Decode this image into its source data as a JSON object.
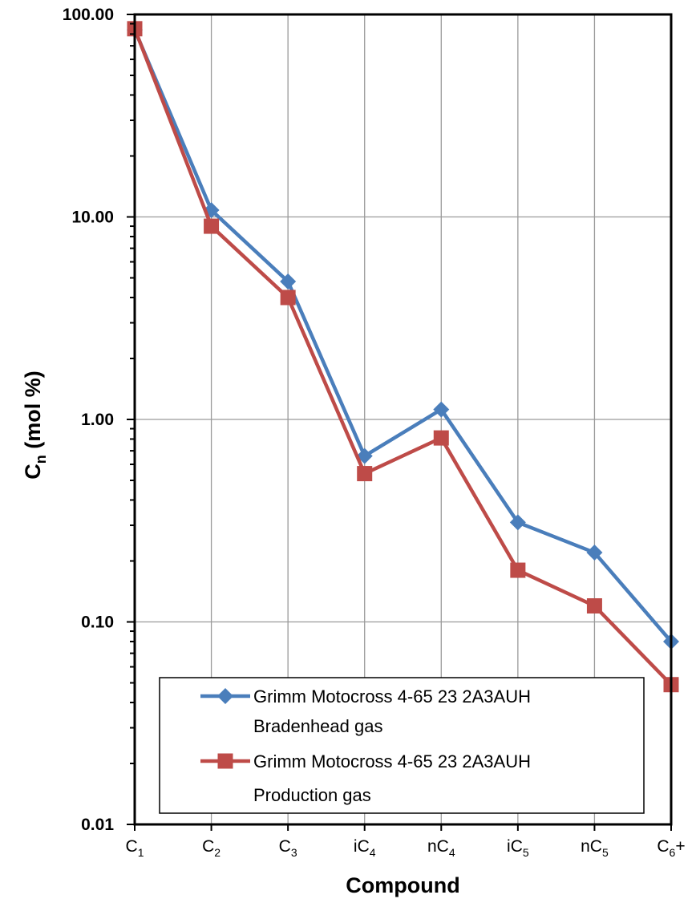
{
  "chart_data": {
    "type": "line",
    "categories": [
      {
        "base": "C",
        "sub": "1",
        "prefix": "",
        "suffix": ""
      },
      {
        "base": "C",
        "sub": "2",
        "prefix": "",
        "suffix": ""
      },
      {
        "base": "C",
        "sub": "3",
        "prefix": "",
        "suffix": ""
      },
      {
        "base": "C",
        "sub": "4",
        "prefix": "i",
        "suffix": ""
      },
      {
        "base": "C",
        "sub": "4",
        "prefix": "n",
        "suffix": ""
      },
      {
        "base": "C",
        "sub": "5",
        "prefix": "i",
        "suffix": ""
      },
      {
        "base": "C",
        "sub": "5",
        "prefix": "n",
        "suffix": ""
      },
      {
        "base": "C",
        "sub": "6",
        "prefix": "",
        "suffix": "+"
      }
    ],
    "series": [
      {
        "name_lines": [
          "Grimm Motocross 4-65 23 2A3AUH",
          "Bradenhead gas"
        ],
        "color": "#4a7ebb",
        "marker": "diamond",
        "values": [
          84.0,
          10.8,
          4.8,
          0.66,
          1.12,
          0.31,
          0.22,
          0.08
        ]
      },
      {
        "name_lines": [
          "Grimm Motocross 4-65 23 2A3AUH",
          "Production gas"
        ],
        "color": "#be4b48",
        "marker": "square",
        "values": [
          85.0,
          9.0,
          4.0,
          0.54,
          0.81,
          0.18,
          0.12,
          0.049
        ]
      }
    ],
    "xlabel": "Compound",
    "ylabel": {
      "base": "C",
      "sub": "n",
      "rest": " (mol %)"
    },
    "yscale": "log",
    "ylim": [
      0.01,
      100
    ],
    "yticks": [
      "0.01",
      "0.10",
      "1.00",
      "10.00",
      "100.00"
    ],
    "grid": true,
    "legend_position": "bottom-left"
  }
}
